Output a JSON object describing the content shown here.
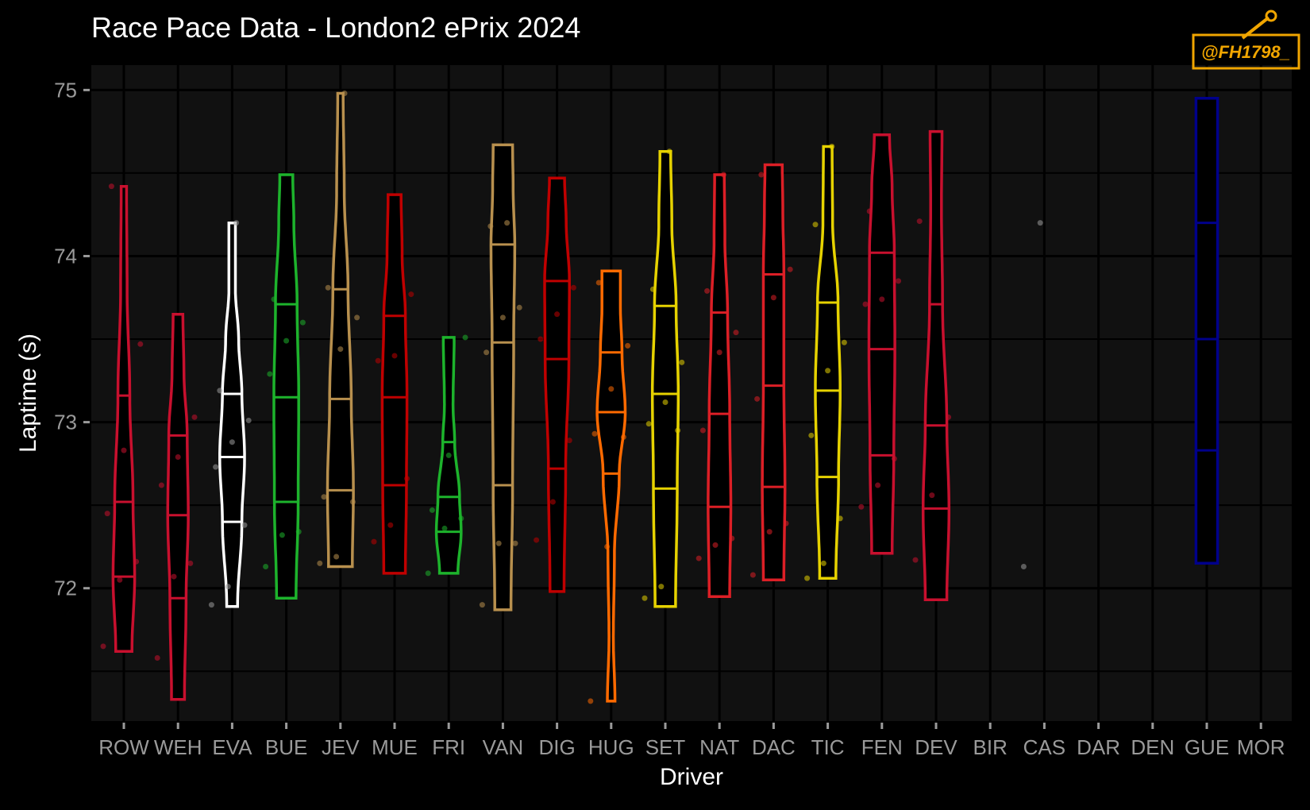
{
  "header": {
    "title": "Race Pace Data - London2 ePrix 2024"
  },
  "logo": {
    "text": "@FH1798_"
  },
  "colors": {
    "background": "#000000",
    "panel": "#111111",
    "grid": "#000000",
    "accent": "#f0a500"
  },
  "chart_data": {
    "type": "violin",
    "title": "Race Pace Data - London2 ePrix 2024",
    "xlabel": "Driver",
    "ylabel": "Laptime (s)",
    "ylim": [
      71.2,
      75.15
    ],
    "yticks": [
      72,
      73,
      74,
      75
    ],
    "categories": [
      "ROW",
      "WEH",
      "EVA",
      "BUE",
      "JEV",
      "MUE",
      "FRI",
      "VAN",
      "DIG",
      "HUG",
      "SET",
      "NAT",
      "DAC",
      "TIC",
      "FEN",
      "DEV",
      "BIR",
      "CAS",
      "DAR",
      "DEN",
      "GUE",
      "MOR"
    ],
    "grid": true,
    "series": [
      {
        "driver": "ROW",
        "color": "#c8102e",
        "min": 71.62,
        "max": 74.42,
        "quantiles": [
          72.07,
          72.52,
          73.16
        ],
        "shape": [
          [
            71.62,
            0.3
          ],
          [
            72.07,
            0.4
          ],
          [
            72.52,
            0.34
          ],
          [
            73.16,
            0.22
          ],
          [
            73.8,
            0.12
          ],
          [
            74.42,
            0.1
          ]
        ],
        "points": [
          71.65,
          72.05,
          72.16,
          72.45,
          72.83,
          73.47,
          74.42
        ]
      },
      {
        "driver": "WEH",
        "color": "#c8102e",
        "min": 71.33,
        "max": 73.65,
        "quantiles": [
          71.94,
          72.44,
          72.92
        ],
        "shape": [
          [
            71.33,
            0.24
          ],
          [
            71.94,
            0.3
          ],
          [
            72.44,
            0.38
          ],
          [
            72.92,
            0.34
          ],
          [
            73.3,
            0.22
          ],
          [
            73.65,
            0.18
          ]
        ],
        "points": [
          71.58,
          72.07,
          72.15,
          72.62,
          72.79,
          73.03
        ]
      },
      {
        "driver": "EVA",
        "color": "#ffffff",
        "min": 71.89,
        "max": 74.2,
        "quantiles": [
          72.4,
          72.79,
          73.17
        ],
        "shape": [
          [
            71.89,
            0.2
          ],
          [
            72.4,
            0.36
          ],
          [
            72.79,
            0.46
          ],
          [
            73.17,
            0.36
          ],
          [
            73.5,
            0.24
          ],
          [
            73.8,
            0.12
          ],
          [
            74.2,
            0.12
          ]
        ],
        "points": [
          71.9,
          72.01,
          72.38,
          72.73,
          72.88,
          73.01,
          73.19,
          74.2
        ]
      },
      {
        "driver": "BUE",
        "color": "#1db32c",
        "min": 71.94,
        "max": 74.49,
        "quantiles": [
          72.52,
          73.15,
          73.71
        ],
        "shape": [
          [
            71.94,
            0.36
          ],
          [
            72.52,
            0.44
          ],
          [
            73.15,
            0.46
          ],
          [
            73.71,
            0.4
          ],
          [
            74.2,
            0.28
          ],
          [
            74.49,
            0.24
          ]
        ],
        "points": [
          72.13,
          72.32,
          72.34,
          73.29,
          73.49,
          73.6,
          73.74
        ]
      },
      {
        "driver": "JEV",
        "color": "#b8904e",
        "min": 72.13,
        "max": 74.98,
        "quantiles": [
          72.59,
          73.14,
          73.8
        ],
        "shape": [
          [
            72.13,
            0.44
          ],
          [
            72.59,
            0.48
          ],
          [
            73.14,
            0.4
          ],
          [
            73.8,
            0.28
          ],
          [
            74.4,
            0.14
          ],
          [
            74.98,
            0.1
          ]
        ],
        "points": [
          72.15,
          72.19,
          72.52,
          72.55,
          73.44,
          73.63,
          73.81,
          74.98
        ]
      },
      {
        "driver": "MUE",
        "color": "#c00000",
        "min": 72.09,
        "max": 74.37,
        "quantiles": [
          72.62,
          73.15,
          73.64
        ],
        "shape": [
          [
            72.09,
            0.4
          ],
          [
            72.62,
            0.44
          ],
          [
            73.15,
            0.46
          ],
          [
            73.64,
            0.4
          ],
          [
            74.0,
            0.28
          ],
          [
            74.37,
            0.24
          ]
        ],
        "points": [
          72.28,
          72.38,
          72.66,
          73.37,
          73.4,
          73.77
        ]
      },
      {
        "driver": "FRI",
        "color": "#1db32c",
        "min": 72.09,
        "max": 73.51,
        "quantiles": [
          72.34,
          72.55,
          72.88
        ],
        "shape": [
          [
            72.09,
            0.34
          ],
          [
            72.34,
            0.46
          ],
          [
            72.55,
            0.4
          ],
          [
            72.88,
            0.22
          ],
          [
            73.1,
            0.16
          ],
          [
            73.51,
            0.2
          ]
        ],
        "points": [
          72.09,
          72.36,
          72.42,
          72.47,
          72.8,
          73.51
        ]
      },
      {
        "driver": "VAN",
        "color": "#b8904e",
        "min": 71.87,
        "max": 74.67,
        "quantiles": [
          72.62,
          73.48,
          74.07
        ],
        "shape": [
          [
            71.87,
            0.3
          ],
          [
            72.62,
            0.36
          ],
          [
            73.48,
            0.4
          ],
          [
            74.07,
            0.44
          ],
          [
            74.4,
            0.38
          ],
          [
            74.67,
            0.36
          ]
        ],
        "points": [
          71.9,
          72.27,
          72.27,
          73.42,
          73.63,
          73.69,
          74.18,
          74.2
        ]
      },
      {
        "driver": "DIG",
        "color": "#c00000",
        "min": 71.98,
        "max": 74.47,
        "quantiles": [
          72.72,
          73.38,
          73.85
        ],
        "shape": [
          [
            71.98,
            0.26
          ],
          [
            72.72,
            0.32
          ],
          [
            73.38,
            0.44
          ],
          [
            73.85,
            0.46
          ],
          [
            74.2,
            0.34
          ],
          [
            74.47,
            0.28
          ]
        ],
        "points": [
          72.29,
          72.52,
          72.89,
          73.5,
          73.65,
          73.81
        ]
      },
      {
        "driver": "HUG",
        "color": "#ff6a00",
        "min": 71.32,
        "max": 73.91,
        "quantiles": [
          72.69,
          73.06,
          73.42
        ],
        "shape": [
          [
            71.32,
            0.14
          ],
          [
            71.7,
            0.08
          ],
          [
            72.2,
            0.12
          ],
          [
            72.69,
            0.3
          ],
          [
            73.06,
            0.52
          ],
          [
            73.42,
            0.4
          ],
          [
            73.7,
            0.34
          ],
          [
            73.91,
            0.34
          ]
        ],
        "points": [
          71.32,
          72.25,
          72.91,
          72.93,
          73.2,
          73.46,
          73.84
        ]
      },
      {
        "driver": "SET",
        "color": "#e6d200",
        "min": 71.89,
        "max": 74.63,
        "quantiles": [
          72.6,
          73.17,
          73.7
        ],
        "shape": [
          [
            71.89,
            0.38
          ],
          [
            72.6,
            0.44
          ],
          [
            73.17,
            0.48
          ],
          [
            73.7,
            0.4
          ],
          [
            74.2,
            0.24
          ],
          [
            74.63,
            0.2
          ]
        ],
        "points": [
          71.94,
          72.01,
          72.95,
          72.99,
          73.12,
          73.36,
          73.8,
          74.63
        ]
      },
      {
        "driver": "NAT",
        "color": "#dc1f26",
        "min": 71.95,
        "max": 74.49,
        "quantiles": [
          72.49,
          73.05,
          73.66
        ],
        "shape": [
          [
            71.95,
            0.38
          ],
          [
            72.49,
            0.42
          ],
          [
            73.05,
            0.38
          ],
          [
            73.66,
            0.3
          ],
          [
            74.1,
            0.2
          ],
          [
            74.49,
            0.18
          ]
        ],
        "points": [
          72.18,
          72.26,
          72.3,
          72.95,
          73.42,
          73.54,
          73.79,
          74.49
        ]
      },
      {
        "driver": "DAC",
        "color": "#dc1f26",
        "min": 72.05,
        "max": 74.55,
        "quantiles": [
          72.61,
          73.22,
          73.89
        ],
        "shape": [
          [
            72.05,
            0.38
          ],
          [
            72.61,
            0.42
          ],
          [
            73.22,
            0.38
          ],
          [
            73.89,
            0.38
          ],
          [
            74.3,
            0.34
          ],
          [
            74.55,
            0.32
          ]
        ],
        "points": [
          72.08,
          72.34,
          72.39,
          73.14,
          73.75,
          73.92,
          74.49
        ]
      },
      {
        "driver": "TIC",
        "color": "#e6d200",
        "min": 72.06,
        "max": 74.66,
        "quantiles": [
          72.67,
          73.19,
          73.72
        ],
        "shape": [
          [
            72.06,
            0.3
          ],
          [
            72.67,
            0.4
          ],
          [
            73.19,
            0.46
          ],
          [
            73.72,
            0.38
          ],
          [
            74.2,
            0.18
          ],
          [
            74.66,
            0.16
          ]
        ],
        "points": [
          72.06,
          72.15,
          72.42,
          72.92,
          73.31,
          73.48,
          74.19,
          74.66
        ]
      },
      {
        "driver": "FEN",
        "color": "#c8102e",
        "min": 72.21,
        "max": 74.73,
        "quantiles": [
          72.8,
          73.44,
          74.02
        ],
        "shape": [
          [
            72.21,
            0.38
          ],
          [
            72.8,
            0.44
          ],
          [
            73.44,
            0.48
          ],
          [
            74.02,
            0.46
          ],
          [
            74.4,
            0.38
          ],
          [
            74.73,
            0.28
          ]
        ],
        "points": [
          72.49,
          72.62,
          72.78,
          73.71,
          73.74,
          73.85,
          74.27
        ]
      },
      {
        "driver": "DEV",
        "color": "#c8102e",
        "min": 71.93,
        "max": 74.75,
        "quantiles": [
          72.48,
          72.98,
          73.71
        ],
        "shape": [
          [
            71.93,
            0.4
          ],
          [
            72.48,
            0.48
          ],
          [
            72.98,
            0.4
          ],
          [
            73.71,
            0.24
          ],
          [
            74.3,
            0.2
          ],
          [
            74.75,
            0.22
          ]
        ],
        "points": [
          72.17,
          72.56,
          73.03,
          74.21
        ]
      },
      {
        "driver": "BIR",
        "color": "#ffffff",
        "points": []
      },
      {
        "driver": "CAS",
        "color": "#ffffff",
        "points": [
          72.13,
          74.2
        ]
      },
      {
        "driver": "DAR",
        "color": "#ffffff",
        "points": []
      },
      {
        "driver": "DEN",
        "color": "#ffffff",
        "points": []
      },
      {
        "driver": "GUE",
        "color": "#00008b",
        "min": 72.15,
        "max": 74.95,
        "quantiles": [
          72.83,
          73.5,
          74.2
        ],
        "shape": [
          [
            72.15,
            0.4
          ],
          [
            72.83,
            0.4
          ],
          [
            73.5,
            0.4
          ],
          [
            74.2,
            0.4
          ],
          [
            74.95,
            0.4
          ]
        ],
        "points": []
      },
      {
        "driver": "MOR",
        "color": "#ffffff",
        "points": []
      }
    ]
  }
}
